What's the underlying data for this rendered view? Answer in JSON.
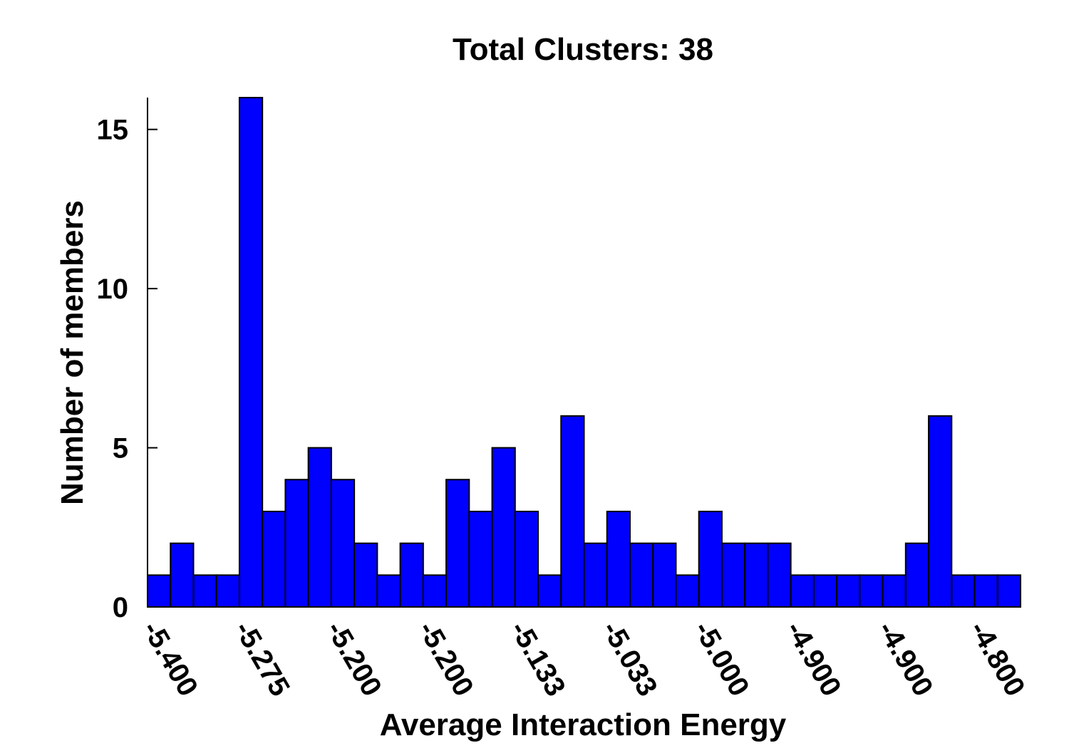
{
  "chart_data": {
    "type": "bar",
    "title": "Total Clusters: 38",
    "xlabel": "Average Interaction Energy",
    "ylabel": "Number of members",
    "bar_color": "#0000ff",
    "ylim": [
      0,
      16
    ],
    "yticks": [
      0,
      5,
      10,
      15
    ],
    "xtick_labels": [
      "-5.400",
      "-5.275",
      "-5.200",
      "-5.200",
      "-5.133",
      "-5.033",
      "-5.000",
      "-4.900",
      "-4.900",
      "-4.800"
    ],
    "xtick_every": 4,
    "values": [
      1,
      2,
      1,
      1,
      16,
      3,
      4,
      5,
      4,
      2,
      1,
      2,
      1,
      4,
      3,
      5,
      3,
      1,
      6,
      2,
      3,
      2,
      2,
      1,
      3,
      2,
      2,
      2,
      1,
      1,
      1,
      1,
      1,
      2,
      6,
      1,
      1,
      1
    ],
    "grid": false,
    "legend": "none"
  }
}
